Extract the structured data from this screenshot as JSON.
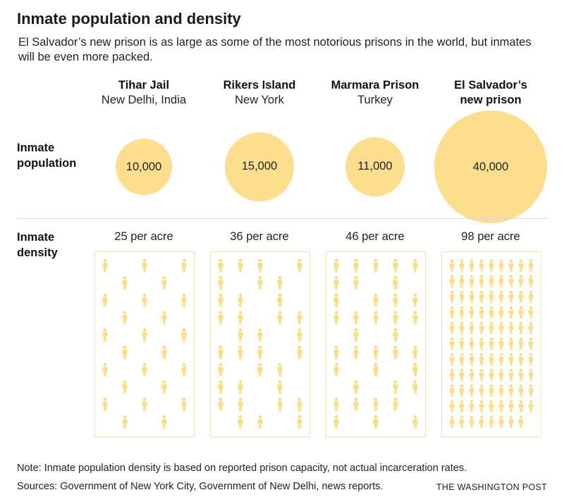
{
  "title": "Inmate population and density",
  "subtitle": "El Salvador’s new prison is as large as some of the most notorious prisons in the world, but inmates will be even more packed.",
  "row_labels": {
    "population": "Inmate\npopulation",
    "density": "Inmate\ndensity"
  },
  "colors": {
    "circle": "#fbde8e",
    "figure": "#f9dd83",
    "box_border": "#f3e2a9"
  },
  "icons": {
    "figure": "person-icon"
  },
  "chart_data": {
    "type": "proportional-symbol-and-icon-array",
    "title": "Inmate population and density",
    "subtitle": "El Salvador’s new prison is as large as some of the most notorious prisons in the world, but inmates will be even more packed.",
    "prisons": [
      {
        "name": "Tihar Jail",
        "location": "New Delhi, India",
        "population": 10000,
        "population_label": "10,000",
        "density_per_acre": 25,
        "density_label": "25 per acre",
        "icon_cols": 5,
        "icon_rows": 10,
        "icon_count": 25
      },
      {
        "name": "Rikers Island",
        "location": "New York",
        "population": 15000,
        "population_label": "15,000",
        "density_per_acre": 36,
        "density_label": "36 per acre",
        "icon_cols": 5,
        "icon_rows": 10,
        "icon_count": 36
      },
      {
        "name": "Marmara Prison",
        "location": "Turkey",
        "population": 11000,
        "population_label": "11,000",
        "density_per_acre": 46,
        "density_label": "46 per acre",
        "icon_cols": 5,
        "icon_rows": 10,
        "icon_count": 46
      },
      {
        "name": "El Salvador’s\nnew prison",
        "location": "",
        "population": 40000,
        "population_label": "40,000",
        "density_per_acre": 98,
        "density_label": "98 per acre",
        "icon_cols": 9,
        "icon_rows": 11,
        "icon_count": 98
      }
    ]
  },
  "footer": {
    "note": "Note: Inmate population density is based on reported prison capacity, not actual incarceration rates.",
    "sources": "Sources: Government of New York City, Government of New Delhi, news reports.",
    "credit": "THE WASHINGTON POST"
  }
}
